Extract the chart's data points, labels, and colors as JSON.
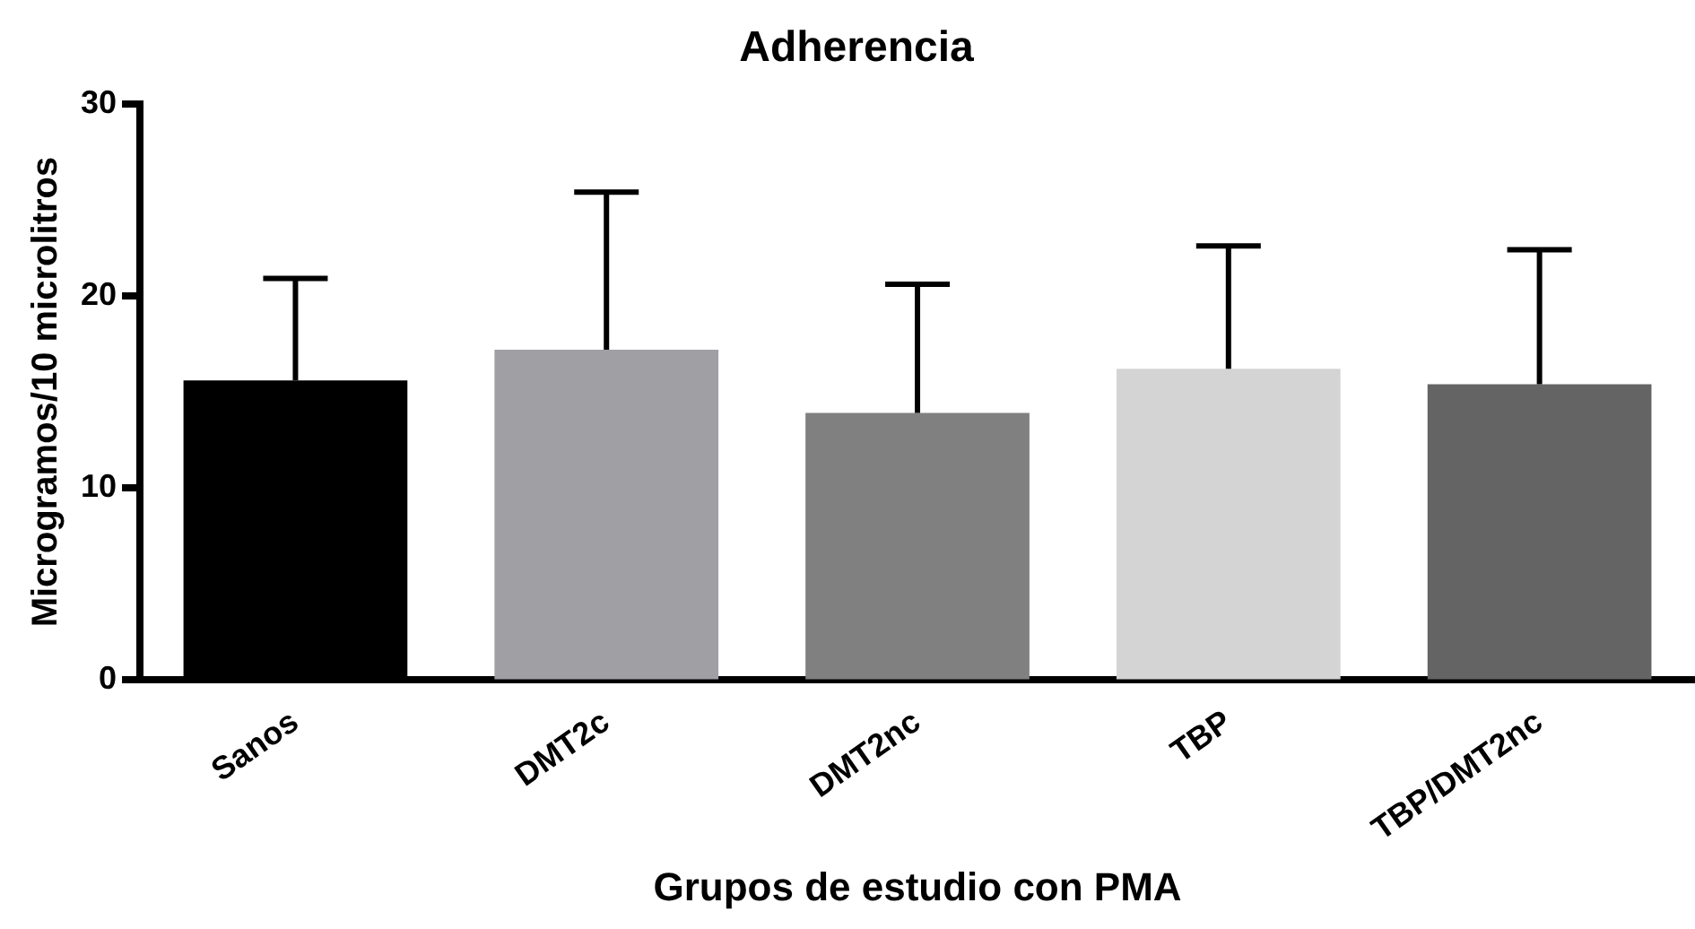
{
  "chart_data": {
    "type": "bar",
    "title": "Adherencia",
    "xlabel": "Grupos de estudio con PMA",
    "ylabel": "Microgramos/10 microlitros",
    "categories": [
      "Sanos",
      "DMT2c",
      "DMT2nc",
      "TBP",
      "TBP/DMT2nc"
    ],
    "values": [
      15.6,
      17.2,
      13.9,
      16.2,
      15.4
    ],
    "colors": [
      "#000000",
      "#a0a0a4",
      "#808080",
      "#d4d4d4",
      "#646464"
    ],
    "errors": [
      [
        15.6,
        20.9
      ],
      [
        17.2,
        25.4
      ],
      [
        13.9,
        20.6
      ],
      [
        16.2,
        22.6
      ],
      [
        15.4,
        22.4
      ]
    ],
    "ylim": [
      0,
      30
    ],
    "yticks": [
      0,
      10,
      20,
      30
    ],
    "grid": false,
    "legend": false
  }
}
